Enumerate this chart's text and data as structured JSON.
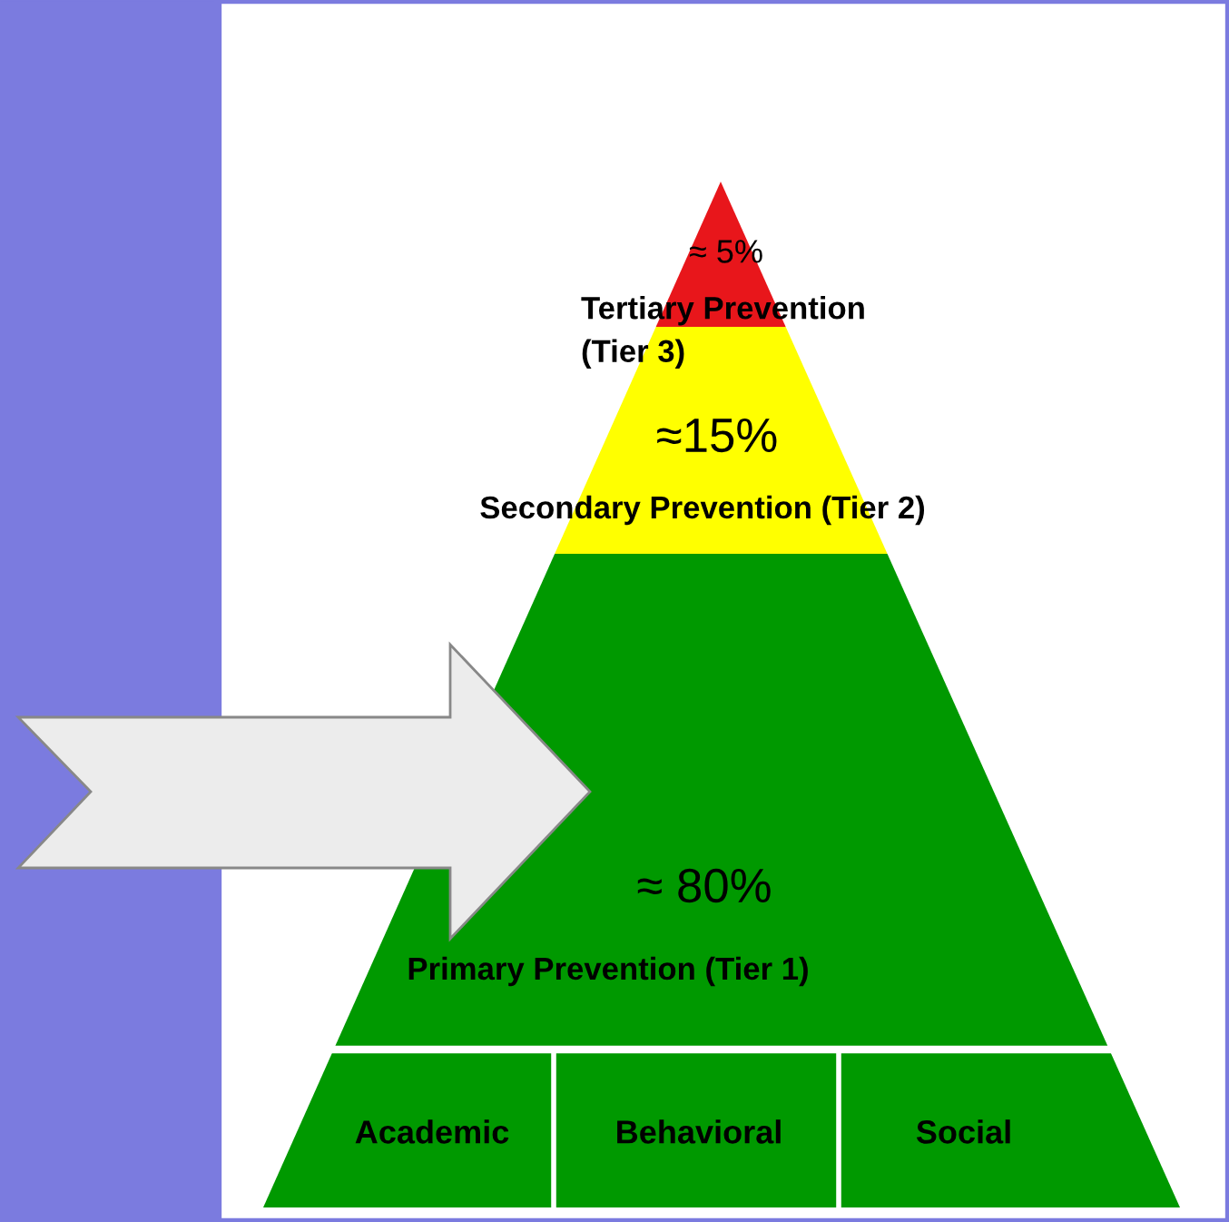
{
  "chart_data": {
    "type": "other",
    "categories": [
      "Tertiary Prevention\n(Tier 3)",
      "Secondary Prevention (Tier 2)",
      "Primary Prevention (Tier 1)"
    ],
    "values": [
      5,
      15,
      80
    ],
    "value_labels": [
      "≈ 5%",
      "≈15%",
      "≈ 80%"
    ],
    "colors": [
      "#e8161b",
      "#ffff00",
      "#009900"
    ],
    "annotations": [
      "Academic",
      "Behavioral",
      "Social"
    ]
  }
}
